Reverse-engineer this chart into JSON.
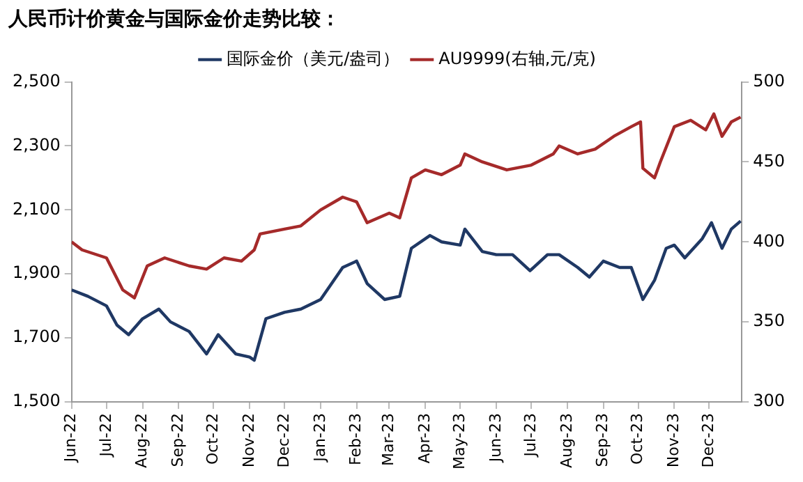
{
  "chart_data": {
    "type": "line",
    "title": "人民币计价黄金与国际金价走势比较：",
    "x": [
      "2022-06-01",
      "2022-06-15",
      "2022-07-01",
      "2022-07-10",
      "2022-07-20",
      "2022-08-01",
      "2022-08-15",
      "2022-08-25",
      "2022-09-10",
      "2022-09-25",
      "2022-10-05",
      "2022-10-20",
      "2022-11-01",
      "2022-11-05",
      "2022-11-15",
      "2022-12-01",
      "2022-12-15",
      "2023-01-01",
      "2023-01-20",
      "2023-02-01",
      "2023-02-10",
      "2023-02-25",
      "2023-03-10",
      "2023-03-20",
      "2023-04-05",
      "2023-04-15",
      "2023-05-01",
      "2023-05-05",
      "2023-05-20",
      "2023-06-01",
      "2023-06-15",
      "2023-06-30",
      "2023-07-15",
      "2023-07-25",
      "2023-08-10",
      "2023-08-20",
      "2023-09-01",
      "2023-09-15",
      "2023-09-25",
      "2023-10-05",
      "2023-10-15",
      "2023-10-25",
      "2023-11-01",
      "2023-11-10",
      "2023-11-25",
      "2023-12-03",
      "2023-12-12",
      "2023-12-20",
      "2023-12-28"
    ],
    "series": [
      {
        "name": "国际金价（美元/盎司）",
        "color": "#1f3864",
        "values": [
          1850,
          1830,
          1800,
          1740,
          1710,
          1760,
          1790,
          1750,
          1720,
          1650,
          1710,
          1650,
          1640,
          1630,
          1760,
          1780,
          1790,
          1820,
          1920,
          1940,
          1870,
          1820,
          1830,
          1980,
          2020,
          2000,
          1990,
          2040,
          1970,
          1960,
          1960,
          1910,
          1960,
          1960,
          1920,
          1890,
          1940,
          1920,
          1920,
          1820,
          1880,
          1980,
          1990,
          1950,
          2010,
          2060,
          1980,
          2040,
          2065
        ]
      },
      {
        "name": "AU9999(右轴,元/克)",
        "color": "#a52a2a",
        "axis": "y2",
        "x": [
          "2022-06-01",
          "2022-06-10",
          "2022-07-01",
          "2022-07-15",
          "2022-07-25",
          "2022-08-05",
          "2022-08-20",
          "2022-09-10",
          "2022-09-25",
          "2022-10-10",
          "2022-10-25",
          "2022-11-05",
          "2022-11-10",
          "2022-12-01",
          "2022-12-15",
          "2023-01-01",
          "2023-01-20",
          "2023-02-01",
          "2023-02-10",
          "2023-03-01",
          "2023-03-10",
          "2023-03-20",
          "2023-04-01",
          "2023-04-15",
          "2023-05-01",
          "2023-05-05",
          "2023-05-20",
          "2023-06-10",
          "2023-07-01",
          "2023-07-20",
          "2023-07-25",
          "2023-08-10",
          "2023-08-25",
          "2023-09-10",
          "2023-09-25",
          "2023-10-03",
          "2023-10-05",
          "2023-10-15",
          "2023-10-20",
          "2023-11-01",
          "2023-11-15",
          "2023-11-28",
          "2023-12-05",
          "2023-12-12",
          "2023-12-20",
          "2023-12-28"
        ],
        "values": [
          400,
          395,
          390,
          370,
          365,
          385,
          390,
          385,
          383,
          390,
          388,
          395,
          405,
          408,
          410,
          420,
          428,
          425,
          412,
          418,
          415,
          440,
          445,
          442,
          448,
          455,
          450,
          445,
          448,
          455,
          460,
          455,
          458,
          466,
          472,
          475,
          446,
          440,
          450,
          472,
          476,
          470,
          480,
          466,
          475,
          478
        ]
      }
    ],
    "xlim": [
      "2022-06-01",
      "2023-12-29"
    ],
    "xticks": [
      {
        "value": "2022-06-01",
        "label": "Jun-22"
      },
      {
        "value": "2022-07-01",
        "label": "Jul-22"
      },
      {
        "value": "2022-08-01",
        "label": "Aug-22"
      },
      {
        "value": "2022-09-01",
        "label": "Sep-22"
      },
      {
        "value": "2022-10-01",
        "label": "Oct-22"
      },
      {
        "value": "2022-11-01",
        "label": "Nov-22"
      },
      {
        "value": "2022-12-01",
        "label": "Dec-22"
      },
      {
        "value": "2023-01-01",
        "label": "Jan-23"
      },
      {
        "value": "2023-02-01",
        "label": "Feb-23"
      },
      {
        "value": "2023-03-01",
        "label": "Mar-23"
      },
      {
        "value": "2023-04-01",
        "label": "Apr-23"
      },
      {
        "value": "2023-05-01",
        "label": "May-23"
      },
      {
        "value": "2023-06-01",
        "label": "Jun-23"
      },
      {
        "value": "2023-07-01",
        "label": "Jul-23"
      },
      {
        "value": "2023-08-01",
        "label": "Aug-23"
      },
      {
        "value": "2023-09-01",
        "label": "Sep-23"
      },
      {
        "value": "2023-10-01",
        "label": "Oct-23"
      },
      {
        "value": "2023-11-01",
        "label": "Nov-23"
      },
      {
        "value": "2023-12-01",
        "label": "Dec-23"
      }
    ],
    "ylim": [
      1500,
      2500
    ],
    "yticks": [
      {
        "value": 1500,
        "label": "1,500"
      },
      {
        "value": 1700,
        "label": "1,700"
      },
      {
        "value": 1900,
        "label": "1,900"
      },
      {
        "value": 2100,
        "label": "2,100"
      },
      {
        "value": 2300,
        "label": "2,300"
      },
      {
        "value": 2500,
        "label": "2,500"
      }
    ],
    "y2lim": [
      300,
      500
    ],
    "y2ticks": [
      300,
      350,
      400,
      450,
      500
    ],
    "grid": false,
    "legend": "top",
    "marker": "none",
    "line_style": "solid"
  }
}
